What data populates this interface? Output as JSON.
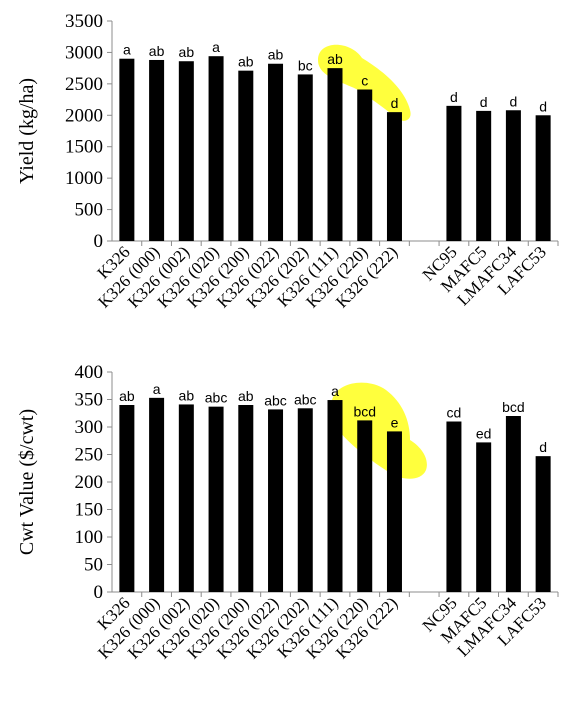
{
  "chart_data": [
    {
      "type": "bar",
      "ylabel": "Yield (kg/ha)",
      "ylim": [
        0,
        3500
      ],
      "yticks": [
        0,
        500,
        1000,
        1500,
        2000,
        2500,
        3000,
        3500
      ],
      "categories": [
        "K326",
        "K326 (000)",
        "K326 (002)",
        "K326 (020)",
        "K326 (200)",
        "K326 (022)",
        "K326 (202)",
        "K326 (111)",
        "K326 (220)",
        "K326 (222)",
        "",
        "NC95",
        "MAFC5",
        "LMAFC34",
        "LAFC53"
      ],
      "values": [
        2900,
        2880,
        2860,
        2940,
        2710,
        2820,
        2650,
        2750,
        2410,
        2050,
        null,
        2150,
        2070,
        2080,
        2000
      ],
      "labels": [
        "a",
        "ab",
        "ab",
        "a",
        "ab",
        "ab",
        "bc",
        "ab",
        "c",
        "d",
        "",
        "d",
        "d",
        "d",
        "d"
      ],
      "bar_color": "#000000",
      "highlight_color": "#ffff33"
    },
    {
      "type": "bar",
      "ylabel": "Cwt Value ($/cwt)",
      "ylim": [
        0,
        400
      ],
      "yticks": [
        0,
        50,
        100,
        150,
        200,
        250,
        300,
        350,
        400
      ],
      "categories": [
        "K326",
        "K326 (000)",
        "K326 (002)",
        "K326 (020)",
        "K326 (200)",
        "K326 (022)",
        "K326 (202)",
        "K326 (111)",
        "K326 (220)",
        "K326 (222)",
        "",
        "NC95",
        "MAFC5",
        "LMAFC34",
        "LAFC53"
      ],
      "values": [
        340,
        353,
        341,
        337,
        340,
        332,
        334,
        349,
        312,
        292,
        null,
        310,
        272,
        320,
        247
      ],
      "labels": [
        "ab",
        "a",
        "ab",
        "abc",
        "ab",
        "abc",
        "abc",
        "a",
        "bcd",
        "e",
        "",
        "cd",
        "ed",
        "bcd",
        "d"
      ],
      "bar_color": "#000000",
      "highlight_color": "#ffff33"
    }
  ]
}
